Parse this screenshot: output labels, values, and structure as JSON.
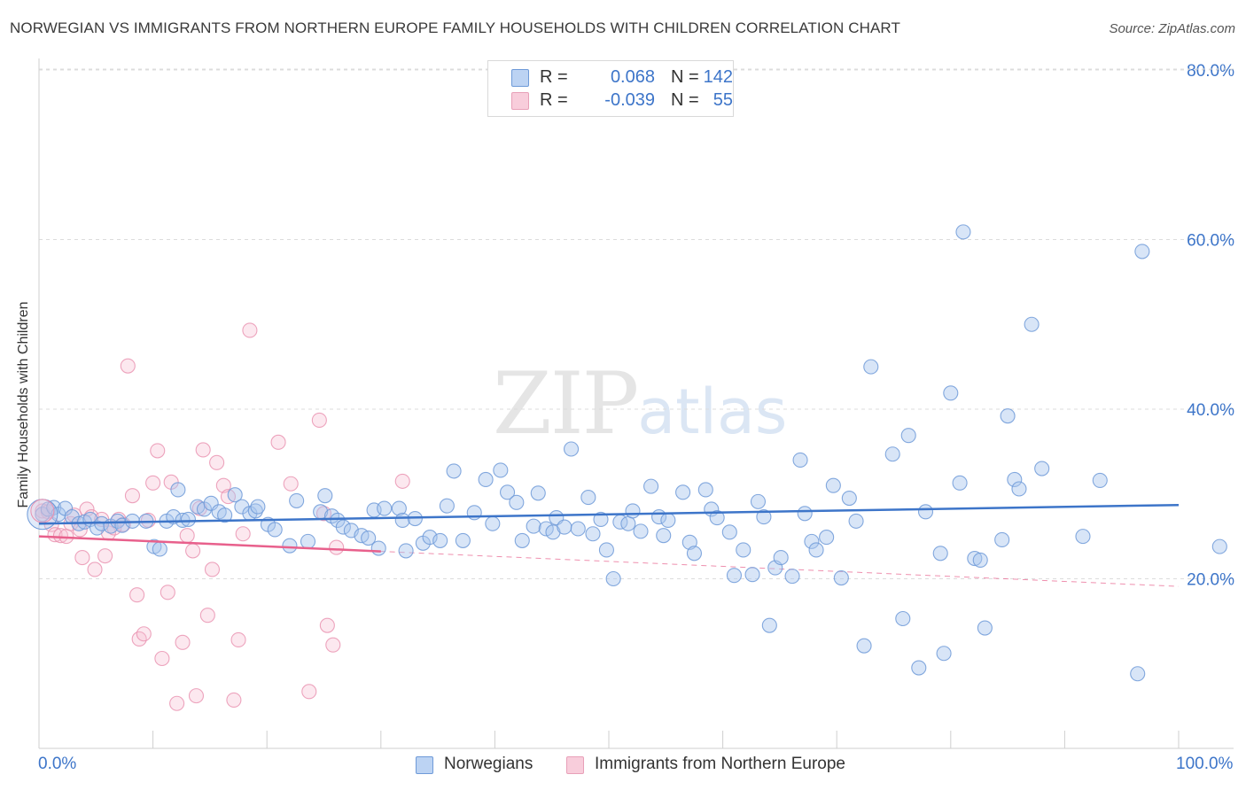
{
  "title": "NORWEGIAN VS IMMIGRANTS FROM NORTHERN EUROPE FAMILY HOUSEHOLDS WITH CHILDREN CORRELATION CHART",
  "source": "Source: ZipAtlas.com",
  "watermark": {
    "zip": "ZIP",
    "atlas": "atlas"
  },
  "colors": {
    "blue": "#3d75c9",
    "blue_fill": "#a9c6ee",
    "pink": "#e8608c",
    "pink_fill": "#f6bed0",
    "grid": "#dcdcdc",
    "axis_text": "#3d75c9"
  },
  "legend": {
    "rows": [
      {
        "r_label": "R =",
        "r_value": "0.068",
        "n_label": "N =",
        "n_value": "142"
      },
      {
        "r_label": "R =",
        "r_value": "-0.039",
        "n_label": "N =",
        "n_value": "55"
      }
    ]
  },
  "bottom_legend": {
    "series1": "Norwegians",
    "series2": "Immigrants from Northern Europe"
  },
  "chart_data": {
    "type": "scatter",
    "title": "NORWEGIAN VS IMMIGRANTS FROM NORTHERN EUROPE FAMILY HOUSEHOLDS WITH CHILDREN CORRELATION CHART",
    "xlabel": "",
    "ylabel": "Family Households with Children",
    "xlim": [
      0,
      100
    ],
    "ylim": [
      0,
      80
    ],
    "x_tick_labels": [
      "0.0%",
      "100.0%"
    ],
    "y_ticks": [
      20,
      40,
      60,
      80
    ],
    "y_tick_labels": [
      "20.0%",
      "40.0%",
      "60.0%",
      "80.0%"
    ],
    "series": [
      {
        "name": "Norwegians",
        "r": 0.068,
        "n": 142,
        "trend": {
          "x0": 0,
          "y0": 26.5,
          "x1": 100,
          "y1": 28.7
        },
        "points": [
          [
            0.3,
            27.6
          ],
          [
            0.8,
            28.2
          ],
          [
            1.3,
            28.4
          ],
          [
            1.7,
            27.6
          ],
          [
            2.3,
            28.3
          ],
          [
            2.9,
            27.3
          ],
          [
            3.5,
            26.5
          ],
          [
            4.0,
            26.7
          ],
          [
            4.5,
            27.0
          ],
          [
            5.1,
            26.0
          ],
          [
            5.5,
            26.5
          ],
          [
            6.3,
            26.2
          ],
          [
            6.9,
            26.8
          ],
          [
            7.3,
            26.3
          ],
          [
            8.2,
            26.8
          ],
          [
            9.4,
            26.8
          ],
          [
            10.1,
            23.8
          ],
          [
            10.6,
            23.5
          ],
          [
            11.2,
            26.8
          ],
          [
            11.8,
            27.3
          ],
          [
            12.2,
            30.5
          ],
          [
            12.6,
            26.9
          ],
          [
            13.1,
            27.0
          ],
          [
            13.9,
            28.5
          ],
          [
            14.5,
            28.2
          ],
          [
            15.1,
            28.9
          ],
          [
            15.8,
            27.9
          ],
          [
            16.3,
            27.5
          ],
          [
            17.2,
            29.9
          ],
          [
            17.8,
            28.5
          ],
          [
            18.5,
            27.7
          ],
          [
            19.0,
            28.0
          ],
          [
            19.2,
            28.5
          ],
          [
            20.1,
            26.4
          ],
          [
            20.7,
            25.8
          ],
          [
            22.0,
            23.9
          ],
          [
            22.6,
            29.2
          ],
          [
            23.6,
            24.4
          ],
          [
            24.7,
            27.9
          ],
          [
            25.1,
            29.8
          ],
          [
            25.7,
            27.4
          ],
          [
            26.2,
            26.9
          ],
          [
            26.7,
            26.1
          ],
          [
            27.4,
            25.7
          ],
          [
            28.3,
            25.1
          ],
          [
            28.9,
            24.8
          ],
          [
            29.4,
            28.1
          ],
          [
            29.8,
            23.6
          ],
          [
            30.3,
            28.3
          ],
          [
            31.6,
            28.3
          ],
          [
            31.9,
            26.9
          ],
          [
            32.2,
            23.3
          ],
          [
            33.0,
            27.1
          ],
          [
            33.7,
            24.2
          ],
          [
            34.3,
            24.9
          ],
          [
            35.2,
            24.5
          ],
          [
            35.8,
            28.6
          ],
          [
            36.4,
            32.7
          ],
          [
            37.2,
            24.5
          ],
          [
            38.2,
            27.8
          ],
          [
            39.2,
            31.7
          ],
          [
            39.8,
            26.5
          ],
          [
            40.5,
            32.8
          ],
          [
            41.1,
            30.2
          ],
          [
            41.9,
            29.0
          ],
          [
            42.4,
            24.5
          ],
          [
            43.4,
            26.2
          ],
          [
            43.8,
            30.1
          ],
          [
            44.5,
            25.9
          ],
          [
            45.1,
            25.5
          ],
          [
            45.4,
            27.2
          ],
          [
            46.1,
            26.1
          ],
          [
            46.7,
            35.3
          ],
          [
            47.3,
            25.9
          ],
          [
            48.2,
            29.6
          ],
          [
            48.6,
            25.3
          ],
          [
            49.3,
            27.0
          ],
          [
            49.8,
            23.4
          ],
          [
            50.4,
            20.0
          ],
          [
            51.0,
            26.7
          ],
          [
            51.7,
            26.5
          ],
          [
            52.1,
            28.0
          ],
          [
            52.8,
            25.6
          ],
          [
            53.7,
            30.9
          ],
          [
            54.4,
            27.3
          ],
          [
            54.8,
            25.1
          ],
          [
            55.2,
            26.9
          ],
          [
            56.5,
            30.2
          ],
          [
            57.1,
            24.3
          ],
          [
            57.5,
            23.0
          ],
          [
            58.5,
            30.5
          ],
          [
            59.0,
            28.2
          ],
          [
            59.5,
            27.2
          ],
          [
            60.6,
            25.5
          ],
          [
            61.0,
            20.4
          ],
          [
            61.8,
            23.4
          ],
          [
            62.6,
            20.5
          ],
          [
            63.1,
            29.1
          ],
          [
            63.6,
            27.3
          ],
          [
            64.1,
            14.5
          ],
          [
            64.6,
            21.3
          ],
          [
            65.1,
            22.5
          ],
          [
            66.1,
            20.3
          ],
          [
            66.8,
            34.0
          ],
          [
            67.2,
            27.7
          ],
          [
            67.8,
            24.4
          ],
          [
            68.2,
            23.4
          ],
          [
            69.1,
            24.9
          ],
          [
            69.7,
            31.0
          ],
          [
            70.4,
            20.1
          ],
          [
            71.1,
            29.5
          ],
          [
            71.7,
            26.8
          ],
          [
            72.4,
            12.1
          ],
          [
            73.0,
            45.0
          ],
          [
            74.9,
            34.7
          ],
          [
            75.8,
            15.3
          ],
          [
            76.3,
            36.9
          ],
          [
            77.2,
            9.5
          ],
          [
            77.8,
            27.9
          ],
          [
            79.1,
            23.0
          ],
          [
            79.4,
            11.2
          ],
          [
            80.0,
            41.9
          ],
          [
            80.8,
            31.3
          ],
          [
            81.1,
            60.9
          ],
          [
            82.1,
            22.4
          ],
          [
            82.6,
            22.2
          ],
          [
            83.0,
            14.2
          ],
          [
            84.5,
            24.6
          ],
          [
            85.0,
            39.2
          ],
          [
            85.6,
            31.7
          ],
          [
            86.0,
            30.6
          ],
          [
            87.1,
            50.0
          ],
          [
            88.0,
            33.0
          ],
          [
            91.6,
            25.0
          ],
          [
            93.1,
            31.6
          ],
          [
            96.4,
            8.8
          ],
          [
            96.8,
            58.6
          ],
          [
            103.6,
            23.8
          ]
        ]
      },
      {
        "name": "Immigrants from Northern Europe",
        "r": -0.039,
        "n": 55,
        "trend": {
          "x0": 0,
          "y0": 25.0,
          "x1": 100,
          "y1": 19.1,
          "solid_until": 30
        },
        "points": [
          [
            0.3,
            28.0
          ],
          [
            0.8,
            27.9
          ],
          [
            1.1,
            26.4
          ],
          [
            1.4,
            25.2
          ],
          [
            1.9,
            25.1
          ],
          [
            2.4,
            25.0
          ],
          [
            2.8,
            26.5
          ],
          [
            3.1,
            27.5
          ],
          [
            3.6,
            25.8
          ],
          [
            3.8,
            22.5
          ],
          [
            4.2,
            28.2
          ],
          [
            4.6,
            27.3
          ],
          [
            4.9,
            21.1
          ],
          [
            5.5,
            27.0
          ],
          [
            5.8,
            22.7
          ],
          [
            6.1,
            25.4
          ],
          [
            6.6,
            26.0
          ],
          [
            7.0,
            27.0
          ],
          [
            7.4,
            26.4
          ],
          [
            7.8,
            45.1
          ],
          [
            8.2,
            29.8
          ],
          [
            8.6,
            18.1
          ],
          [
            8.8,
            12.9
          ],
          [
            9.2,
            13.5
          ],
          [
            9.6,
            26.9
          ],
          [
            10.0,
            31.3
          ],
          [
            10.4,
            35.1
          ],
          [
            10.8,
            10.6
          ],
          [
            11.3,
            18.4
          ],
          [
            11.6,
            31.4
          ],
          [
            12.1,
            5.3
          ],
          [
            12.6,
            12.5
          ],
          [
            13.0,
            25.1
          ],
          [
            13.5,
            23.3
          ],
          [
            13.8,
            6.2
          ],
          [
            14.1,
            28.3
          ],
          [
            14.4,
            35.2
          ],
          [
            14.8,
            15.7
          ],
          [
            15.2,
            21.1
          ],
          [
            15.6,
            33.7
          ],
          [
            16.2,
            31.0
          ],
          [
            16.6,
            29.7
          ],
          [
            17.1,
            5.7
          ],
          [
            17.5,
            12.8
          ],
          [
            17.9,
            25.3
          ],
          [
            18.5,
            49.3
          ],
          [
            21.0,
            36.1
          ],
          [
            22.1,
            31.2
          ],
          [
            23.7,
            6.7
          ],
          [
            24.6,
            38.7
          ],
          [
            25.0,
            27.7
          ],
          [
            25.3,
            14.5
          ],
          [
            25.8,
            12.2
          ],
          [
            26.1,
            23.7
          ],
          [
            31.9,
            31.5
          ]
        ]
      }
    ]
  }
}
